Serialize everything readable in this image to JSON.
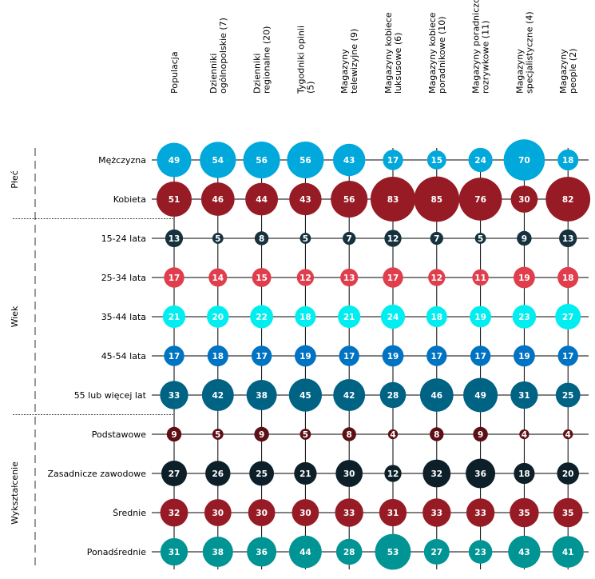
{
  "chart_data": {
    "type": "bubble-matrix",
    "columns": [
      [
        "Populacja"
      ],
      [
        "Dzienniki",
        "ogólnopolskie (7)"
      ],
      [
        "Dzienniki",
        "regionalne (20)"
      ],
      [
        "Tygodniki opinii",
        "(5)"
      ],
      [
        "Magazyny",
        "telewizyjne (9)"
      ],
      [
        "Magazyny kobiece",
        "luksusowe (6)"
      ],
      [
        "Magazyny kobiece",
        "poradnikowe (10)"
      ],
      [
        "Magazyny poradniczo",
        "rozrywkowe (11)"
      ],
      [
        "Magazyny",
        "specjalistyczne (4)"
      ],
      [
        "Magazyny",
        "people (2)"
      ]
    ],
    "groups": [
      {
        "name": "Płeć",
        "rows": [
          "Mężczyzna",
          "Kobieta"
        ]
      },
      {
        "name": "Wiek",
        "rows": [
          "15-24 lata",
          "25-34 lata",
          "35-44 lata",
          "45-54 lata",
          "55 lub więcej lat"
        ]
      },
      {
        "name": "Wykształcenie",
        "rows": [
          "Podstawowe",
          "Zasadnicze zawodowe",
          "Średnie",
          "Ponadśrednie"
        ]
      }
    ],
    "rows": [
      {
        "label": "Mężczyzna",
        "values": [
          49,
          54,
          56,
          56,
          43,
          17,
          15,
          24,
          70,
          18
        ]
      },
      {
        "label": "Kobieta",
        "values": [
          51,
          46,
          44,
          43,
          56,
          83,
          85,
          76,
          30,
          82
        ]
      },
      {
        "label": "15-24 lata",
        "values": [
          13,
          5,
          8,
          5,
          7,
          12,
          7,
          5,
          9,
          13
        ]
      },
      {
        "label": "25-34 lata",
        "values": [
          17,
          14,
          15,
          12,
          13,
          17,
          12,
          11,
          19,
          18
        ]
      },
      {
        "label": "35-44 lata",
        "values": [
          21,
          20,
          22,
          18,
          21,
          24,
          18,
          19,
          23,
          27
        ]
      },
      {
        "label": "45-54 lata",
        "values": [
          17,
          18,
          17,
          19,
          17,
          19,
          17,
          17,
          19,
          17
        ]
      },
      {
        "label": "55 lub więcej lat",
        "values": [
          33,
          42,
          38,
          45,
          42,
          28,
          46,
          49,
          31,
          25
        ]
      },
      {
        "label": "Podstawowe",
        "values": [
          9,
          5,
          9,
          5,
          8,
          4,
          8,
          9,
          4,
          4
        ]
      },
      {
        "label": "Zasadnicze zawodowe",
        "values": [
          27,
          26,
          25,
          21,
          30,
          12,
          32,
          36,
          18,
          20
        ]
      },
      {
        "label": "Średnie",
        "values": [
          32,
          30,
          30,
          30,
          33,
          31,
          33,
          33,
          35,
          35
        ]
      },
      {
        "label": "Ponadśrednie",
        "values": [
          31,
          38,
          36,
          44,
          28,
          53,
          27,
          23,
          43,
          41
        ]
      }
    ],
    "row_colors": [
      "#00a8dc",
      "#971b25",
      "#17323f",
      "#e03e4c",
      "#00eef0",
      "#0073c2",
      "#006384",
      "#5d0f16",
      "#0d1f28",
      "#971b25",
      "#009494"
    ]
  }
}
